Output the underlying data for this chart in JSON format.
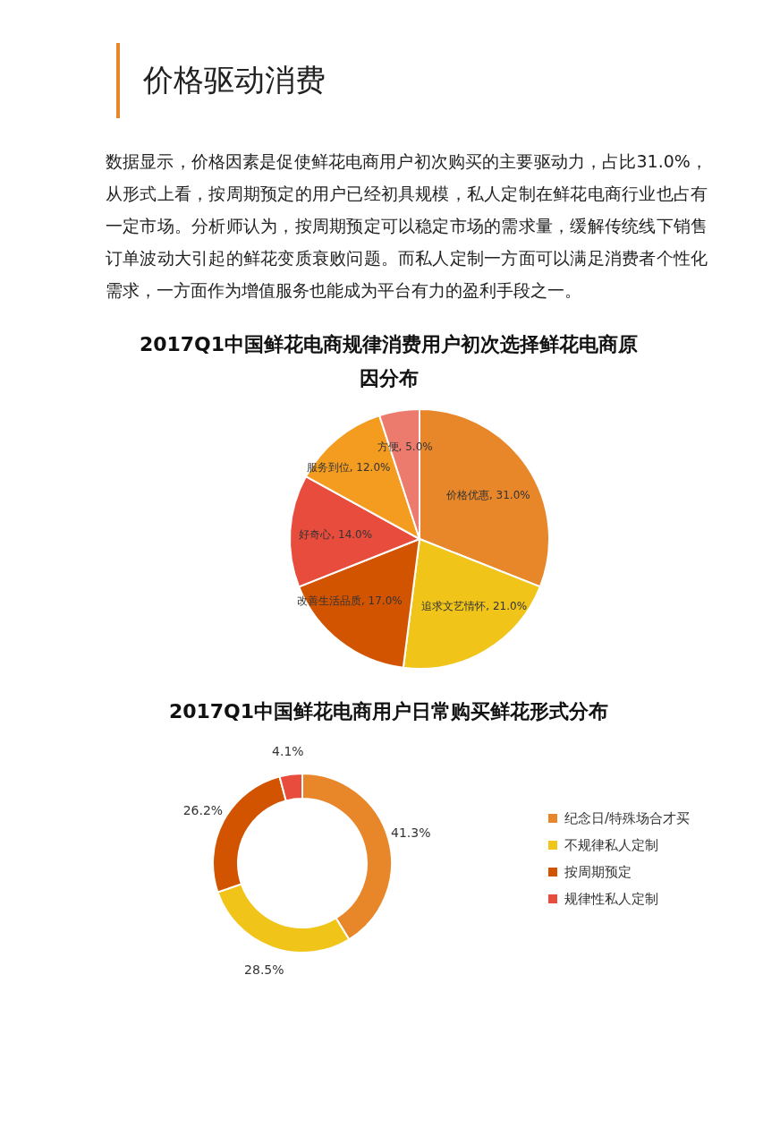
{
  "chart_data": [
    {
      "type": "other",
      "title": "价格驱动消费",
      "annotations": [
        "数据显示，价格因素是促使鲜花电商用户初次购买的主要驱动力，占比31.0%，从形式上看，按周期预定的用户已经初具规模，私人定制在鲜花电商行业也占有一定市场。分析师认为，按周期预定可以稳定市场的需求量，缓解传统线下销售订单波动大引起的鲜花变质衰败问题。而私人定制一方面可以满足消费者个性化需求，一方面作为增值服务也能成为平台有力的盈利手段之一。"
      ]
    },
    {
      "type": "pie",
      "title": "2017Q1中国鲜花电商规律消费用户初次选择鲜花电商原因分布",
      "categories": [
        "价格优惠",
        "追求文艺情怀",
        "改善生活品质",
        "好奇心",
        "服务到位",
        "方便"
      ],
      "values": [
        31.0,
        21.0,
        17.0,
        14.0,
        12.0,
        5.0
      ],
      "value_labels": [
        "31.0%",
        "21.0%",
        "17.0%",
        "14.0%",
        "12.0%",
        "5.0%"
      ],
      "colors": [
        "#e8862a",
        "#f0c419",
        "#d35400",
        "#e74c3c",
        "#f39c20",
        "#ec7b6e"
      ],
      "legend": false
    },
    {
      "type": "donut",
      "title": "2017Q1中国鲜花电商用户日常购买鲜花形式分布",
      "categories": [
        "纪念日/特殊场合才买",
        "不规律私人定制",
        "按周期预定",
        "规律性私人定制"
      ],
      "values": [
        41.3,
        28.5,
        26.2,
        4.1
      ],
      "value_labels": [
        "41.3%",
        "28.5%",
        "26.2%",
        "4.1%"
      ],
      "colors": [
        "#e8862a",
        "#f0c419",
        "#d35400",
        "#e74c3c"
      ],
      "legend": "right"
    }
  ]
}
